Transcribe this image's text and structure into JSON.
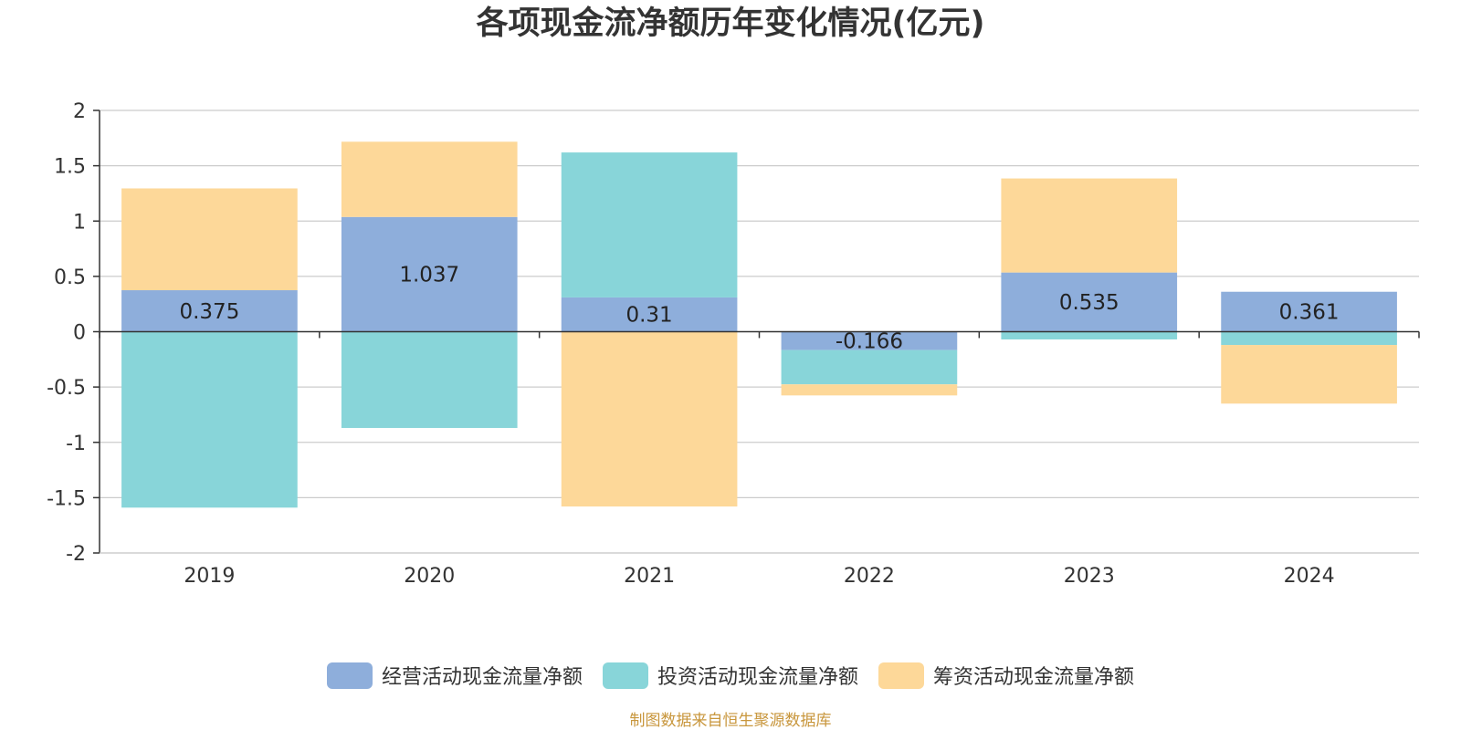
{
  "chart_data": {
    "type": "bar",
    "stacked": true,
    "title": "各项现金流净额历年变化情况(亿元)",
    "categories": [
      "2019",
      "2020",
      "2021",
      "2022",
      "2023",
      "2024"
    ],
    "series": [
      {
        "name": "经营活动现金流量净额",
        "color": "#8eaedb",
        "values": [
          0.375,
          1.037,
          0.31,
          -0.166,
          0.535,
          0.361
        ],
        "show_labels": true
      },
      {
        "name": "投资活动现金流量净额",
        "color": "#88d5d9",
        "values": [
          -1.59,
          -0.87,
          1.31,
          -0.31,
          -0.07,
          -0.12
        ],
        "show_labels": false
      },
      {
        "name": "筹资活动现金流量净额",
        "color": "#fdd899",
        "values": [
          0.92,
          0.68,
          -1.58,
          -0.1,
          0.85,
          -0.53
        ],
        "show_labels": false
      }
    ],
    "ylim": [
      -2,
      2
    ],
    "yticks": [
      2,
      1.5,
      1,
      0.5,
      0,
      -0.5,
      -1,
      -1.5,
      -2
    ],
    "ytick_labels": [
      "2",
      "1.5",
      "1",
      "0.5",
      "0",
      "-0.5",
      "-1",
      "-1.5",
      "-2"
    ],
    "grid": true,
    "legend_position": "bottom-center"
  },
  "source_note": "制图数据来自恒生聚源数据库"
}
